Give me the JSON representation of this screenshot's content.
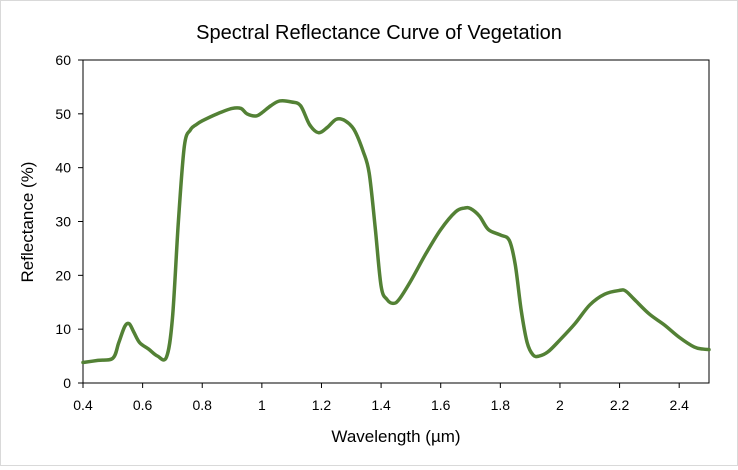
{
  "chart_data": {
    "type": "line",
    "title": "Spectral Reflectance Curve of Vegetation",
    "xlabel": "Wavelength  (µm)",
    "ylabel": "Reflectance  (%)",
    "xlim": [
      0.4,
      2.5
    ],
    "ylim": [
      0,
      60
    ],
    "xticks": [
      0.4,
      0.6,
      0.8,
      1.0,
      1.2,
      1.4,
      1.6,
      1.8,
      2.0,
      2.2,
      2.4
    ],
    "xtick_labels": [
      "0.4",
      "0.6",
      "0.8",
      "1",
      "1.2",
      "1.4",
      "1.6",
      "1.8",
      "2",
      "2.2",
      "2.4"
    ],
    "yticks": [
      0,
      10,
      20,
      30,
      40,
      50,
      60
    ],
    "ytick_labels": [
      "0",
      "10",
      "20",
      "30",
      "40",
      "50",
      "60"
    ],
    "grid": false,
    "line_color": "#538135",
    "series": [
      {
        "name": "Vegetation",
        "x": [
          0.4,
          0.45,
          0.5,
          0.52,
          0.54,
          0.555,
          0.57,
          0.59,
          0.62,
          0.65,
          0.68,
          0.7,
          0.72,
          0.74,
          0.76,
          0.78,
          0.8,
          0.85,
          0.9,
          0.93,
          0.95,
          0.98,
          1.0,
          1.03,
          1.06,
          1.1,
          1.13,
          1.16,
          1.19,
          1.22,
          1.25,
          1.28,
          1.31,
          1.34,
          1.36,
          1.38,
          1.4,
          1.42,
          1.44,
          1.46,
          1.5,
          1.55,
          1.6,
          1.65,
          1.68,
          1.7,
          1.73,
          1.76,
          1.8,
          1.83,
          1.85,
          1.87,
          1.89,
          1.91,
          1.93,
          1.96,
          2.0,
          2.05,
          2.1,
          2.15,
          2.2,
          2.22,
          2.25,
          2.3,
          2.35,
          2.4,
          2.45,
          2.48,
          2.5
        ],
        "values": [
          3.8,
          4.2,
          4.6,
          7.5,
          10.5,
          11.0,
          9.5,
          7.5,
          6.3,
          5.0,
          4.8,
          12.0,
          30.0,
          44.0,
          47.0,
          48.0,
          48.7,
          50.0,
          51.0,
          51.0,
          50.0,
          49.6,
          50.2,
          51.5,
          52.4,
          52.2,
          51.5,
          48.0,
          46.5,
          47.5,
          49.0,
          48.7,
          47.0,
          43.0,
          39.0,
          29.0,
          18.0,
          15.5,
          14.8,
          15.5,
          19.0,
          24.0,
          28.5,
          31.8,
          32.5,
          32.4,
          31.0,
          28.5,
          27.5,
          26.5,
          22.0,
          13.5,
          7.5,
          5.2,
          5.0,
          5.8,
          8.0,
          11.0,
          14.5,
          16.5,
          17.2,
          17.1,
          15.5,
          12.8,
          10.8,
          8.5,
          6.7,
          6.3,
          6.2
        ]
      }
    ]
  }
}
